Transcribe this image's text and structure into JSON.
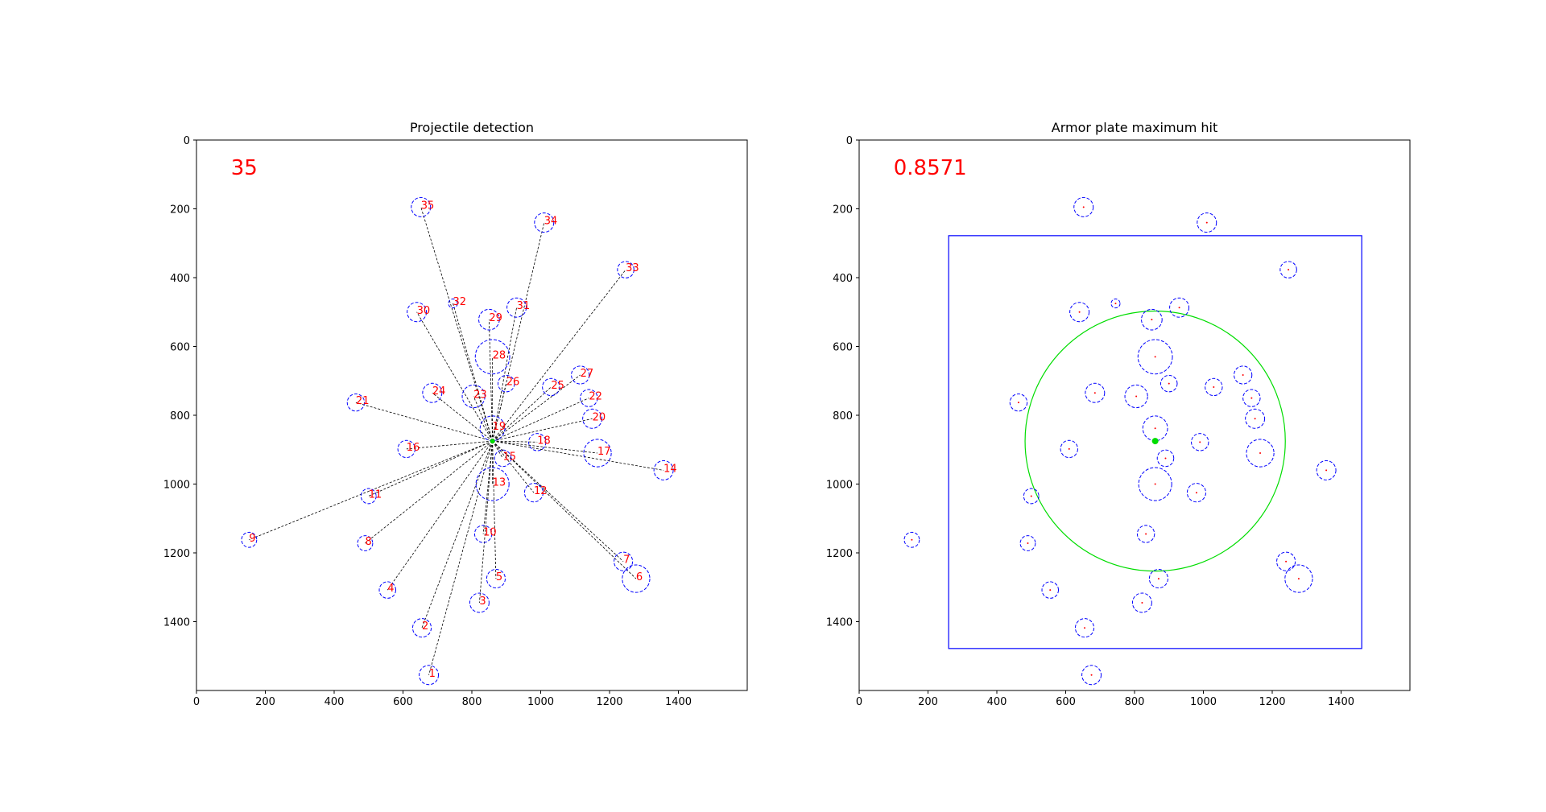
{
  "colors": {
    "circle": "#0000ff",
    "label": "#ff0000",
    "line": "#000000",
    "plate": "#0000ff",
    "hit": "#00dd00"
  },
  "chart_data": [
    {
      "type": "scatter",
      "title": "Projectile detection",
      "annotation": "35",
      "xlim": [
        0,
        1600
      ],
      "ylim": [
        1600,
        0
      ],
      "xticks": [
        0,
        200,
        400,
        600,
        800,
        1000,
        1200,
        1400
      ],
      "yticks": [
        0,
        200,
        400,
        600,
        800,
        1000,
        1200,
        1400
      ],
      "center": [
        860,
        875
      ],
      "points": [
        {
          "label": "1",
          "x": 675,
          "y": 1555,
          "r": 28
        },
        {
          "label": "2",
          "x": 655,
          "y": 1418,
          "r": 27
        },
        {
          "label": "3",
          "x": 822,
          "y": 1345,
          "r": 28
        },
        {
          "label": "4",
          "x": 555,
          "y": 1308,
          "r": 24
        },
        {
          "label": "5",
          "x": 870,
          "y": 1275,
          "r": 27
        },
        {
          "label": "6",
          "x": 1277,
          "y": 1275,
          "r": 40
        },
        {
          "label": "7",
          "x": 1240,
          "y": 1225,
          "r": 27
        },
        {
          "label": "8",
          "x": 490,
          "y": 1172,
          "r": 22
        },
        {
          "label": "9",
          "x": 153,
          "y": 1162,
          "r": 22
        },
        {
          "label": "10",
          "x": 833,
          "y": 1145,
          "r": 25
        },
        {
          "label": "11",
          "x": 500,
          "y": 1035,
          "r": 22
        },
        {
          "label": "12",
          "x": 980,
          "y": 1025,
          "r": 27
        },
        {
          "label": "13",
          "x": 860,
          "y": 1000,
          "r": 48
        },
        {
          "label": "14",
          "x": 1357,
          "y": 960,
          "r": 28
        },
        {
          "label": "15",
          "x": 890,
          "y": 925,
          "r": 24
        },
        {
          "label": "16",
          "x": 610,
          "y": 898,
          "r": 25
        },
        {
          "label": "17",
          "x": 1165,
          "y": 910,
          "r": 40
        },
        {
          "label": "18",
          "x": 990,
          "y": 878,
          "r": 25
        },
        {
          "label": "19",
          "x": 860,
          "y": 838,
          "r": 36
        },
        {
          "label": "20",
          "x": 1150,
          "y": 810,
          "r": 28
        },
        {
          "label": "21",
          "x": 463,
          "y": 763,
          "r": 25
        },
        {
          "label": "22",
          "x": 1140,
          "y": 750,
          "r": 25
        },
        {
          "label": "23",
          "x": 805,
          "y": 745,
          "r": 33
        },
        {
          "label": "24",
          "x": 685,
          "y": 735,
          "r": 28
        },
        {
          "label": "25",
          "x": 1030,
          "y": 718,
          "r": 25
        },
        {
          "label": "26",
          "x": 900,
          "y": 708,
          "r": 24
        },
        {
          "label": "27",
          "x": 1115,
          "y": 683,
          "r": 26
        },
        {
          "label": "28",
          "x": 860,
          "y": 630,
          "r": 50
        },
        {
          "label": "29",
          "x": 850,
          "y": 522,
          "r": 30
        },
        {
          "label": "30",
          "x": 640,
          "y": 500,
          "r": 28
        },
        {
          "label": "31",
          "x": 930,
          "y": 487,
          "r": 28
        },
        {
          "label": "32",
          "x": 745,
          "y": 475,
          "r": 13
        },
        {
          "label": "33",
          "x": 1247,
          "y": 377,
          "r": 24
        },
        {
          "label": "34",
          "x": 1010,
          "y": 240,
          "r": 28
        },
        {
          "label": "35",
          "x": 652,
          "y": 195,
          "r": 28
        }
      ]
    },
    {
      "type": "scatter",
      "title": "Armor plate maximum hit",
      "annotation": "0.8571",
      "xlim": [
        0,
        1600
      ],
      "ylim": [
        1600,
        0
      ],
      "xticks": [
        0,
        200,
        400,
        600,
        800,
        1000,
        1200,
        1400
      ],
      "yticks": [
        0,
        200,
        400,
        600,
        800,
        1000,
        1200,
        1400
      ],
      "plate": {
        "x0": 260,
        "y0": 278,
        "x1": 1460,
        "y1": 1478
      },
      "hit_circle": {
        "cx": 860,
        "cy": 875,
        "r": 378
      }
    }
  ]
}
